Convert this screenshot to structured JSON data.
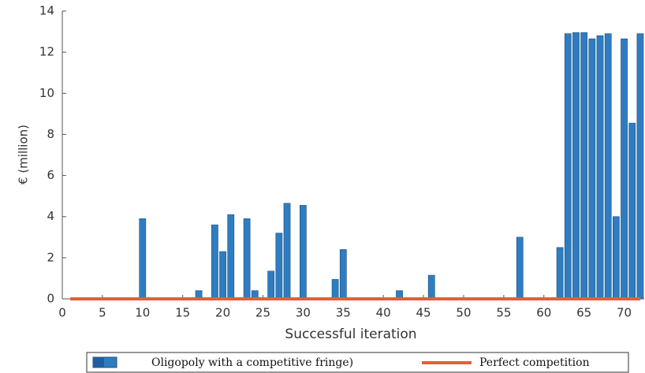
{
  "chart_data": {
    "type": "bar",
    "x_label": "Successful iteration",
    "y_label": "€ (million)",
    "x": [
      1,
      2,
      3,
      4,
      5,
      6,
      7,
      8,
      9,
      10,
      11,
      12,
      13,
      14,
      15,
      16,
      17,
      18,
      19,
      20,
      21,
      22,
      23,
      24,
      25,
      26,
      27,
      28,
      29,
      30,
      31,
      32,
      33,
      34,
      35,
      36,
      37,
      38,
      39,
      40,
      41,
      42,
      43,
      44,
      45,
      46,
      47,
      48,
      49,
      50,
      51,
      52,
      53,
      54,
      55,
      56,
      57,
      58,
      59,
      60,
      61,
      62,
      63,
      64,
      65,
      66,
      67,
      68,
      69,
      70,
      71,
      72
    ],
    "series": [
      {
        "name": "Oligopoly with a competitive fringe)",
        "type": "bar",
        "color": "#2f7dc0",
        "values": [
          0,
          0,
          0,
          0,
          0,
          0,
          0,
          0,
          0,
          3.9,
          0,
          0,
          0,
          0,
          0,
          0,
          0.4,
          0,
          3.6,
          2.3,
          4.1,
          0,
          3.9,
          0.4,
          0,
          1.35,
          3.2,
          4.65,
          0,
          4.55,
          0,
          0,
          0,
          0.95,
          2.4,
          0,
          0,
          0,
          0,
          0,
          0,
          0.4,
          0,
          0,
          0,
          1.15,
          0,
          0,
          0,
          0,
          0,
          0,
          0,
          0,
          0,
          0,
          3.0,
          0,
          0,
          0,
          0,
          2.5,
          12.9,
          12.95,
          12.95,
          12.65,
          12.8,
          12.9,
          4.0,
          12.65,
          8.55,
          12.9
        ]
      },
      {
        "name": "Perfect competition",
        "type": "line",
        "color": "#e0603a",
        "values": [
          0,
          0,
          0,
          0,
          0,
          0,
          0,
          0,
          0,
          0,
          0,
          0,
          0,
          0,
          0,
          0,
          0,
          0,
          0,
          0,
          0,
          0,
          0,
          0,
          0,
          0,
          0,
          0,
          0,
          0,
          0,
          0,
          0,
          0,
          0,
          0,
          0,
          0,
          0,
          0,
          0,
          0,
          0,
          0,
          0,
          0,
          0,
          0,
          0,
          0,
          0,
          0,
          0,
          0,
          0,
          0,
          0,
          0,
          0,
          0,
          0,
          0,
          0,
          0,
          0,
          0,
          0,
          0,
          0,
          0,
          0,
          0
        ]
      }
    ],
    "xlim": [
      0,
      72.5
    ],
    "ylim": [
      0,
      14
    ],
    "xticks": [
      0,
      5,
      10,
      15,
      20,
      25,
      30,
      35,
      40,
      45,
      50,
      55,
      60,
      65,
      70
    ],
    "yticks": [
      0,
      2,
      4,
      6,
      8,
      10,
      12,
      14
    ]
  }
}
